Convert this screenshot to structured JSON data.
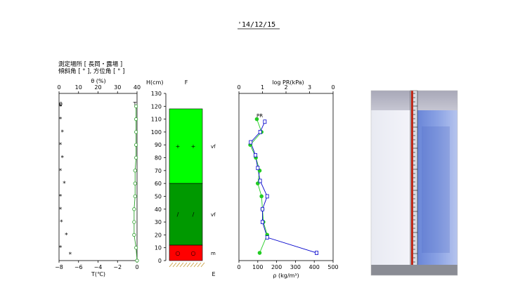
{
  "date": "'14/12/15",
  "site_line1": "測定場所 [ 長岡・露場 ]",
  "site_line2": "傾斜角 [ ° ], 方位角 [ ° ]",
  "colors": {
    "temp": "#2ca02c",
    "pr": "#0000cc",
    "density": "#22cc22",
    "layer_top": "#00ff00",
    "layer_mid": "#009900",
    "layer_bottom": "#ff0000",
    "ground": "#c8a040"
  },
  "chart_data": [
    {
      "type": "scatter",
      "name": "temperature-wetness",
      "x_top_label": "θ (%)",
      "x_top_ticks": [
        "0",
        "10",
        "20",
        "30",
        "40"
      ],
      "x_top_lim": [
        0,
        40
      ],
      "x_bottom_label": "T(℃)",
      "x_bottom_ticks": [
        "−8",
        "−6",
        "−4",
        "−2",
        "0"
      ],
      "x_bottom_lim": [
        -8,
        0
      ],
      "ylim": [
        0,
        130
      ],
      "theta_label": "θ",
      "t_label": "T",
      "temperature": {
        "h": [
          120,
          110,
          100,
          90,
          80,
          70,
          60,
          50,
          40,
          30,
          20,
          10,
          0
        ],
        "t": [
          -0.1,
          -0.1,
          -0.1,
          -0.1,
          -0.1,
          -0.2,
          -0.2,
          -0.2,
          -0.3,
          -0.3,
          -0.3,
          -0.1,
          0
        ]
      },
      "theta": {
        "h": [
          120,
          110,
          100,
          90,
          80,
          70,
          60,
          50,
          40,
          30,
          20,
          10,
          5
        ],
        "v": [
          0,
          0,
          1,
          0,
          1,
          0,
          2,
          0,
          0,
          0.5,
          3,
          0,
          5
        ]
      }
    },
    {
      "type": "table",
      "name": "stratigraphy",
      "ylabel": "H(cm)",
      "column_label": "F",
      "yticks": [
        0,
        10,
        20,
        30,
        40,
        50,
        60,
        70,
        80,
        90,
        100,
        110,
        120,
        130
      ],
      "ylim": [
        0,
        130
      ],
      "layers": [
        {
          "from": 60,
          "to": 118,
          "color": "#00ff00",
          "symbols": [
            "+",
            "+"
          ],
          "grain": "vf"
        },
        {
          "from": 12,
          "to": 60,
          "color": "#009900",
          "symbols": [
            "/",
            "/"
          ],
          "grain": "vf"
        },
        {
          "from": 0,
          "to": 12,
          "color": "#ff0000",
          "symbols": [
            "○",
            "○"
          ],
          "grain": "m"
        }
      ],
      "ground_label": "E"
    },
    {
      "type": "line",
      "name": "density-hardness",
      "x_top_label": "log PR(kPa)",
      "x_top_ticks": [
        "0",
        "1",
        "2",
        "3",
        "0"
      ],
      "x_top_lim": [
        0,
        4
      ],
      "x_bottom_label": "ρ (kg/m³)",
      "x_bottom_ticks": [
        "0",
        "100",
        "200",
        "300",
        "400",
        "500"
      ],
      "x_bottom_lim": [
        0,
        500
      ],
      "ylim": [
        0,
        130
      ],
      "pr_label": "PR",
      "series": [
        {
          "name": "PR",
          "h": [
            108,
            100,
            92,
            82,
            72,
            62,
            50,
            40,
            30,
            18,
            6
          ],
          "x": [
            1.1,
            0.9,
            0.5,
            0.7,
            0.8,
            0.9,
            1.2,
            1.0,
            1.0,
            1.2,
            3.3
          ]
        },
        {
          "name": "ρ",
          "h": [
            110,
            100,
            90,
            80,
            70,
            60,
            50,
            40,
            30,
            20,
            6
          ],
          "x": [
            95,
            120,
            60,
            90,
            110,
            100,
            120,
            125,
            130,
            150,
            110
          ]
        }
      ]
    }
  ]
}
